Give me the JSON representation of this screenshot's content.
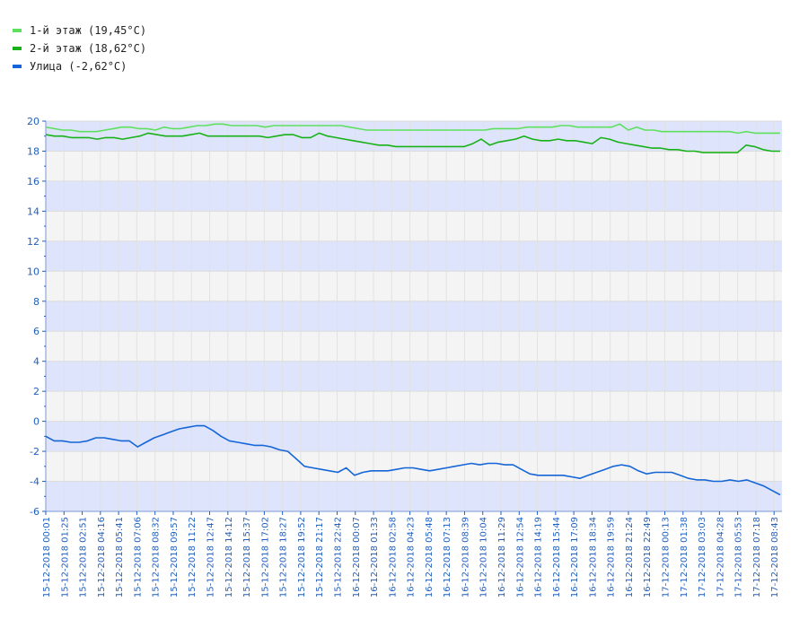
{
  "legend": [
    {
      "label": "1-й этаж (19,45°C)",
      "color": "#5ee05e"
    },
    {
      "label": "2-й этаж (18,62°C)",
      "color": "#18b218"
    },
    {
      "label": "Улица (-2,62°C)",
      "color": "#1565d8"
    }
  ],
  "chart_data": {
    "type": "line",
    "title": "",
    "xlabel": "",
    "ylabel": "",
    "ylim": [
      -6,
      20
    ],
    "y_ticks": [
      "20",
      "18",
      "16",
      "14",
      "12",
      "10",
      "8",
      "6",
      "4",
      "2",
      "0",
      "-2",
      "-4",
      "-6"
    ],
    "x_labels": [
      "15-12-2018 00:01",
      "15-12-2018 01:25",
      "15-12-2018 02:51",
      "15-12-2018 04:16",
      "15-12-2018 05:41",
      "15-12-2018 07:06",
      "15-12-2018 08:32",
      "15-12-2018 09:57",
      "15-12-2018 11:22",
      "15-12-2018 12:47",
      "15-12-2018 14:12",
      "15-12-2018 15:37",
      "15-12-2018 17:02",
      "15-12-2018 18:27",
      "15-12-2018 19:52",
      "15-12-2018 21:17",
      "15-12-2018 22:42",
      "16-12-2018 00:07",
      "16-12-2018 01:33",
      "16-12-2018 02:58",
      "16-12-2018 04:23",
      "16-12-2018 05:48",
      "16-12-2018 07:13",
      "16-12-2018 08:39",
      "16-12-2018 10:04",
      "16-12-2018 11:29",
      "16-12-2018 12:54",
      "16-12-2018 14:19",
      "16-12-2018 15:44",
      "16-12-2018 17:09",
      "16-12-2018 18:34",
      "16-12-2018 19:59",
      "16-12-2018 21:24",
      "16-12-2018 22:49",
      "17-12-2018 00:13",
      "17-12-2018 01:38",
      "17-12-2018 03:03",
      "17-12-2018 04:28",
      "17-12-2018 05:53",
      "17-12-2018 07:18",
      "17-12-2018 08:43"
    ],
    "grid": true,
    "band_colors": [
      "#dde4fb",
      "#f4f4f4"
    ],
    "series": [
      {
        "name": "1-й этаж (19,45°C)",
        "color": "#5ee05e",
        "values": [
          19.6,
          19.5,
          19.4,
          19.4,
          19.3,
          19.3,
          19.3,
          19.4,
          19.5,
          19.6,
          19.6,
          19.5,
          19.5,
          19.4,
          19.6,
          19.5,
          19.5,
          19.6,
          19.7,
          19.7,
          19.8,
          19.8,
          19.7,
          19.7,
          19.7,
          19.7,
          19.6,
          19.7,
          19.7,
          19.7,
          19.7,
          19.7,
          19.7,
          19.7,
          19.7,
          19.7,
          19.6,
          19.5,
          19.4,
          19.4,
          19.4,
          19.4,
          19.4,
          19.4,
          19.4,
          19.4,
          19.4,
          19.4,
          19.4,
          19.4,
          19.4,
          19.4,
          19.4,
          19.5,
          19.5,
          19.5,
          19.5,
          19.6,
          19.6,
          19.6,
          19.6,
          19.7,
          19.7,
          19.6,
          19.6,
          19.6,
          19.6,
          19.6,
          19.8,
          19.4,
          19.6,
          19.4,
          19.4,
          19.3,
          19.3,
          19.3,
          19.3,
          19.3,
          19.3,
          19.3,
          19.3,
          19.3,
          19.2,
          19.3,
          19.2,
          19.2,
          19.2,
          19.2
        ]
      },
      {
        "name": "2-й этаж (18,62°C)",
        "color": "#18b218",
        "values": [
          19.1,
          19.0,
          19.0,
          18.9,
          18.9,
          18.9,
          18.8,
          18.9,
          18.9,
          18.8,
          18.9,
          19.0,
          19.2,
          19.1,
          19.0,
          19.0,
          19.0,
          19.1,
          19.2,
          19.0,
          19.0,
          19.0,
          19.0,
          19.0,
          19.0,
          19.0,
          18.9,
          19.0,
          19.1,
          19.1,
          18.9,
          18.9,
          19.2,
          19.0,
          18.9,
          18.8,
          18.7,
          18.6,
          18.5,
          18.4,
          18.4,
          18.3,
          18.3,
          18.3,
          18.3,
          18.3,
          18.3,
          18.3,
          18.3,
          18.3,
          18.5,
          18.8,
          18.4,
          18.6,
          18.7,
          18.8,
          19.0,
          18.8,
          18.7,
          18.7,
          18.8,
          18.7,
          18.7,
          18.6,
          18.5,
          18.9,
          18.8,
          18.6,
          18.5,
          18.4,
          18.3,
          18.2,
          18.2,
          18.1,
          18.1,
          18.0,
          18.0,
          17.9,
          17.9,
          17.9,
          17.9,
          17.9,
          18.4,
          18.3,
          18.1,
          18.0,
          18.0
        ]
      },
      {
        "name": "Улица (-2,62°C)",
        "color": "#1565d8",
        "values": [
          -1.0,
          -1.3,
          -1.3,
          -1.4,
          -1.4,
          -1.3,
          -1.1,
          -1.1,
          -1.2,
          -1.3,
          -1.3,
          -1.7,
          -1.4,
          -1.1,
          -0.9,
          -0.7,
          -0.5,
          -0.4,
          -0.3,
          -0.3,
          -0.6,
          -1.0,
          -1.3,
          -1.4,
          -1.5,
          -1.6,
          -1.6,
          -1.7,
          -1.9,
          -2.0,
          -2.5,
          -3.0,
          -3.1,
          -3.2,
          -3.3,
          -3.4,
          -3.1,
          -3.6,
          -3.4,
          -3.3,
          -3.3,
          -3.3,
          -3.2,
          -3.1,
          -3.1,
          -3.2,
          -3.3,
          -3.2,
          -3.1,
          -3.0,
          -2.9,
          -2.8,
          -2.9,
          -2.8,
          -2.8,
          -2.9,
          -2.9,
          -3.2,
          -3.5,
          -3.6,
          -3.6,
          -3.6,
          -3.6,
          -3.7,
          -3.8,
          -3.6,
          -3.4,
          -3.2,
          -3.0,
          -2.9,
          -3.0,
          -3.3,
          -3.5,
          -3.4,
          -3.4,
          -3.4,
          -3.6,
          -3.8,
          -3.9,
          -3.9,
          -4.0,
          -4.0,
          -3.9,
          -4.0,
          -3.9,
          -4.1,
          -4.3,
          -4.6,
          -4.9
        ]
      }
    ]
  }
}
